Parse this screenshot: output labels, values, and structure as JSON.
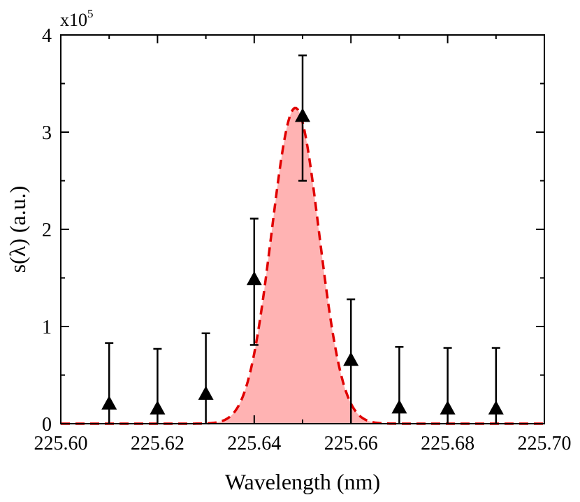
{
  "chart_data": {
    "type": "scatter",
    "xlabel": "Wavelength (nm)",
    "ylabel": "s(λ) (a.u.)",
    "y_multiplier": {
      "base": "x10",
      "exponent": "5"
    },
    "xlim": [
      225.6,
      225.7
    ],
    "ylim": [
      0,
      400000
    ],
    "x_ticks": [
      "225.60",
      "225.62",
      "225.64",
      "225.66",
      "225.68",
      "225.70"
    ],
    "y_ticks": [
      "0",
      "1",
      "2",
      "3",
      "4"
    ],
    "grid": false,
    "series": [
      {
        "kind": "scatter-errorbar",
        "marker": "triangle",
        "color": "#000000",
        "points": [
          {
            "x": 225.61,
            "y": 20000,
            "err_low": 20000,
            "err_high": 63000
          },
          {
            "x": 225.62,
            "y": 15000,
            "err_low": 15000,
            "err_high": 62000
          },
          {
            "x": 225.63,
            "y": 30000,
            "err_low": 30000,
            "err_high": 63000
          },
          {
            "x": 225.64,
            "y": 148000,
            "err_low": 67000,
            "err_high": 63000
          },
          {
            "x": 225.65,
            "y": 316000,
            "err_low": 66000,
            "err_high": 63000
          },
          {
            "x": 225.66,
            "y": 65000,
            "err_low": 65000,
            "err_high": 63000
          },
          {
            "x": 225.67,
            "y": 16000,
            "err_low": 16000,
            "err_high": 63000
          },
          {
            "x": 225.68,
            "y": 15000,
            "err_low": 15000,
            "err_high": 63000
          },
          {
            "x": 225.69,
            "y": 15000,
            "err_low": 15000,
            "err_high": 63000
          }
        ]
      },
      {
        "kind": "gaussian-fit",
        "line_color": "#e00000",
        "fill_color": "#ffb3b3",
        "line_style": "dashed",
        "center": 225.6485,
        "amplitude": 325000,
        "sigma": 0.0049
      }
    ]
  }
}
